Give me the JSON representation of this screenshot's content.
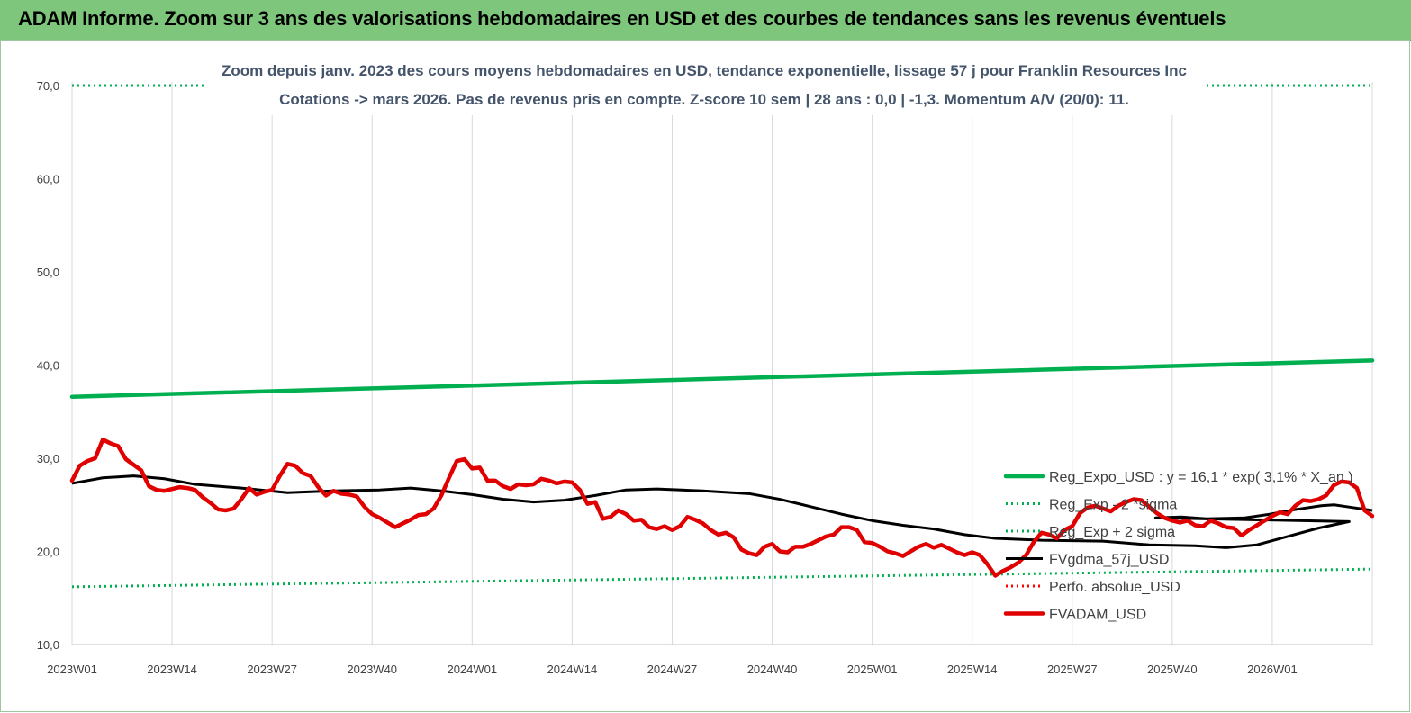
{
  "page_title": "ADAM Informe. Zoom sur 3 ans des valorisations hebdomadaires en USD et des courbes de tendances sans les revenus éventuels",
  "chart_data": {
    "type": "line",
    "title": "Zoom depuis janv. 2023 des cours moyens hebdomadaires en USD, tendance exponentielle, lissage 57 j pour Franklin Resources Inc",
    "subtitle": "Cotations -> mars 2026. Pas de revenus pris en compte. Z-score 10 sem | 28 ans : 0,0 | -1,3. Momentum A/V (20/0): 11.",
    "xlabel": "",
    "ylabel": "",
    "ylim": [
      10,
      70
    ],
    "y_ticks": [
      "10,0",
      "20,0",
      "30,0",
      "40,0",
      "50,0",
      "60,0",
      "70,0"
    ],
    "x_ticks": [
      "2023W01",
      "2023W14",
      "2023W27",
      "2023W40",
      "2024W01",
      "2024W14",
      "2024W27",
      "2024W40",
      "2025W01",
      "2025W14",
      "2025W27",
      "2025W40",
      "2026W01"
    ],
    "n_weeks": 170,
    "grid": "vertical",
    "legend_position": "lower-right",
    "series": [
      {
        "name": "Reg_Expo_USD : y = 16,1 * exp( 3,1% * X_an )",
        "color": "#00b050",
        "style": "solid-thick",
        "points": [
          [
            0,
            36.6
          ],
          [
            169,
            40.5
          ]
        ]
      },
      {
        "name": "Reg_Exp - 2 *sigma",
        "color": "#00b050",
        "style": "dotted",
        "points": [
          [
            0,
            16.2
          ],
          [
            169,
            18.1
          ]
        ]
      },
      {
        "name": "Reg_Exp + 2 sigma",
        "color": "#00b050",
        "style": "dotted",
        "points": [
          [
            0,
            70.0
          ],
          [
            169,
            70.0
          ]
        ]
      },
      {
        "name": "FVgdma_57j_USD",
        "color": "#000000",
        "style": "solid",
        "points": [
          [
            0,
            27.3
          ],
          [
            4,
            27.9
          ],
          [
            8,
            28.1
          ],
          [
            12,
            27.8
          ],
          [
            16,
            27.2
          ],
          [
            22,
            26.8
          ],
          [
            28,
            26.3
          ],
          [
            34,
            26.5
          ],
          [
            40,
            26.6
          ],
          [
            44,
            26.8
          ],
          [
            48,
            26.5
          ],
          [
            52,
            26.1
          ],
          [
            56,
            25.6
          ],
          [
            60,
            25.3
          ],
          [
            64,
            25.5
          ],
          [
            68,
            26.0
          ],
          [
            72,
            26.6
          ],
          [
            76,
            26.7
          ],
          [
            82,
            26.5
          ],
          [
            88,
            26.2
          ],
          [
            92,
            25.6
          ],
          [
            96,
            24.8
          ],
          [
            100,
            24.0
          ],
          [
            104,
            23.3
          ],
          [
            108,
            22.8
          ],
          [
            112,
            22.4
          ],
          [
            116,
            21.8
          ],
          [
            120,
            21.4
          ],
          [
            126,
            21.2
          ],
          [
            134,
            21.1
          ],
          [
            140,
            20.7
          ],
          [
            146,
            20.6
          ],
          [
            150,
            20.4
          ],
          [
            154,
            20.7
          ],
          [
            158,
            21.6
          ],
          [
            162,
            22.5
          ],
          [
            166,
            23.2
          ],
          [
            170,
            23.6
          ],
          [
            174,
            23.7
          ],
          [
            178,
            23.5
          ],
          [
            184,
            23.6
          ],
          [
            188,
            24.0
          ],
          [
            192,
            24.5
          ],
          [
            196,
            24.9
          ],
          [
            198,
            25.0
          ],
          [
            200,
            24.8
          ],
          [
            204,
            24.4
          ]
        ]
      },
      {
        "name": "Perfo. absolue_USD",
        "color": "#ff0000",
        "style": "dotted",
        "points": []
      },
      {
        "name": "FVADAM_USD",
        "color": "#e00000",
        "style": "solid-thick",
        "points": [
          [
            0,
            27.6
          ],
          [
            1,
            29.2
          ],
          [
            2,
            29.7
          ],
          [
            3,
            30.0
          ],
          [
            4,
            32.0
          ],
          [
            5,
            31.6
          ],
          [
            6,
            31.3
          ],
          [
            7,
            29.9
          ],
          [
            8,
            29.3
          ],
          [
            9,
            28.7
          ],
          [
            10,
            27.0
          ],
          [
            11,
            26.6
          ],
          [
            12,
            26.5
          ],
          [
            13,
            26.7
          ],
          [
            14,
            26.9
          ],
          [
            15,
            26.8
          ],
          [
            16,
            26.6
          ],
          [
            17,
            25.8
          ],
          [
            18,
            25.2
          ],
          [
            19,
            24.5
          ],
          [
            20,
            24.4
          ],
          [
            21,
            24.6
          ],
          [
            22,
            25.6
          ],
          [
            23,
            26.8
          ],
          [
            24,
            26.1
          ],
          [
            25,
            26.4
          ],
          [
            26,
            26.6
          ],
          [
            27,
            28.1
          ],
          [
            28,
            29.4
          ],
          [
            29,
            29.2
          ],
          [
            30,
            28.4
          ],
          [
            31,
            28.1
          ],
          [
            32,
            26.9
          ],
          [
            33,
            26.0
          ],
          [
            34,
            26.5
          ],
          [
            35,
            26.2
          ],
          [
            36,
            26.1
          ],
          [
            37,
            25.9
          ],
          [
            38,
            24.8
          ],
          [
            39,
            24.0
          ],
          [
            40,
            23.6
          ],
          [
            41,
            23.1
          ],
          [
            42,
            22.6
          ],
          [
            43,
            23.0
          ],
          [
            44,
            23.4
          ],
          [
            45,
            23.9
          ],
          [
            46,
            24.0
          ],
          [
            47,
            24.6
          ],
          [
            48,
            26.0
          ],
          [
            49,
            27.9
          ],
          [
            50,
            29.7
          ],
          [
            51,
            29.9
          ],
          [
            52,
            28.9
          ],
          [
            53,
            29.0
          ],
          [
            54,
            27.6
          ],
          [
            55,
            27.6
          ],
          [
            56,
            27.0
          ],
          [
            57,
            26.7
          ],
          [
            58,
            27.2
          ],
          [
            59,
            27.1
          ],
          [
            60,
            27.2
          ],
          [
            61,
            27.8
          ],
          [
            62,
            27.6
          ],
          [
            63,
            27.3
          ],
          [
            64,
            27.5
          ],
          [
            65,
            27.4
          ],
          [
            66,
            26.6
          ],
          [
            67,
            25.1
          ],
          [
            68,
            25.3
          ],
          [
            69,
            23.5
          ],
          [
            70,
            23.7
          ],
          [
            71,
            24.4
          ],
          [
            72,
            24.0
          ],
          [
            73,
            23.3
          ],
          [
            74,
            23.4
          ],
          [
            75,
            22.6
          ],
          [
            76,
            22.4
          ],
          [
            77,
            22.7
          ],
          [
            78,
            22.3
          ],
          [
            79,
            22.7
          ],
          [
            80,
            23.7
          ],
          [
            81,
            23.4
          ],
          [
            82,
            23.0
          ],
          [
            83,
            22.3
          ],
          [
            84,
            21.8
          ],
          [
            85,
            22.0
          ],
          [
            86,
            21.5
          ],
          [
            87,
            20.2
          ],
          [
            88,
            19.8
          ],
          [
            89,
            19.6
          ],
          [
            90,
            20.5
          ],
          [
            91,
            20.8
          ],
          [
            92,
            20.0
          ],
          [
            93,
            19.9
          ],
          [
            94,
            20.5
          ],
          [
            95,
            20.5
          ],
          [
            96,
            20.8
          ],
          [
            97,
            21.2
          ],
          [
            98,
            21.6
          ],
          [
            99,
            21.8
          ],
          [
            100,
            22.6
          ],
          [
            101,
            22.6
          ],
          [
            102,
            22.3
          ],
          [
            103,
            21.0
          ],
          [
            104,
            20.9
          ],
          [
            105,
            20.5
          ],
          [
            106,
            20.0
          ],
          [
            107,
            19.8
          ],
          [
            108,
            19.5
          ],
          [
            109,
            20.0
          ],
          [
            110,
            20.5
          ],
          [
            111,
            20.8
          ],
          [
            112,
            20.4
          ],
          [
            113,
            20.7
          ],
          [
            114,
            20.3
          ],
          [
            115,
            19.9
          ],
          [
            116,
            19.6
          ],
          [
            117,
            19.9
          ],
          [
            118,
            19.6
          ],
          [
            119,
            18.6
          ],
          [
            120,
            17.4
          ],
          [
            121,
            17.9
          ],
          [
            122,
            18.3
          ],
          [
            123,
            18.8
          ],
          [
            124,
            19.6
          ],
          [
            125,
            21.0
          ],
          [
            126,
            22.0
          ],
          [
            127,
            21.8
          ],
          [
            128,
            21.4
          ],
          [
            129,
            22.3
          ],
          [
            130,
            22.7
          ],
          [
            131,
            24.1
          ],
          [
            132,
            24.7
          ],
          [
            133,
            24.9
          ],
          [
            134,
            24.6
          ],
          [
            135,
            24.3
          ],
          [
            136,
            24.9
          ],
          [
            137,
            25.3
          ],
          [
            138,
            25.6
          ],
          [
            139,
            25.5
          ],
          [
            140,
            24.8
          ],
          [
            141,
            24.1
          ],
          [
            142,
            23.6
          ],
          [
            143,
            23.3
          ],
          [
            144,
            23.1
          ],
          [
            145,
            23.3
          ],
          [
            146,
            22.8
          ],
          [
            147,
            22.7
          ],
          [
            148,
            23.3
          ],
          [
            149,
            23.0
          ],
          [
            150,
            22.6
          ],
          [
            151,
            22.5
          ],
          [
            152,
            21.7
          ],
          [
            153,
            22.3
          ],
          [
            154,
            22.8
          ],
          [
            155,
            23.3
          ],
          [
            156,
            23.8
          ],
          [
            157,
            24.2
          ],
          [
            158,
            24.0
          ],
          [
            159,
            24.9
          ],
          [
            160,
            25.5
          ],
          [
            161,
            25.4
          ],
          [
            162,
            25.6
          ],
          [
            163,
            26.0
          ],
          [
            164,
            27.1
          ],
          [
            165,
            27.5
          ],
          [
            166,
            27.4
          ],
          [
            167,
            26.8
          ],
          [
            168,
            24.4
          ],
          [
            169,
            23.8
          ]
        ]
      }
    ]
  }
}
